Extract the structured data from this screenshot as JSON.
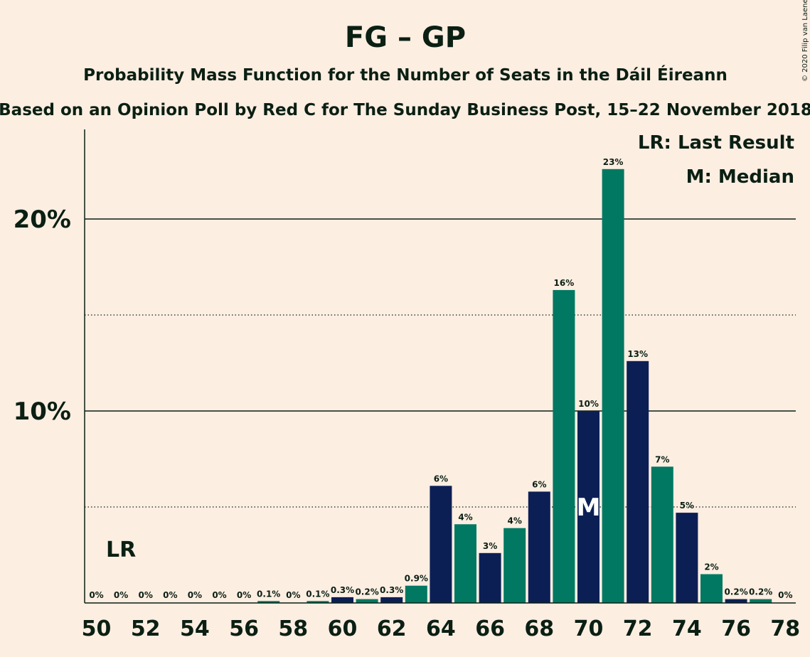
{
  "chart_data": {
    "type": "bar",
    "title": "FG – GP",
    "subtitle": "Probability Mass Function for the Number of Seats in the Dáil Éireann",
    "subtitle2": "Based on an Opinion Poll by Red C for The Sunday Business Post, 15–22 November 2018",
    "copyright": "© 2020 Filip van Laenen",
    "legend": [
      "LR: Last Result",
      "M: Median"
    ],
    "legend_position": "top-right",
    "last_result_label": "LR",
    "last_result_seat": 51,
    "median_label": "M",
    "median_seat": 70,
    "ylim": [
      0,
      24
    ],
    "y_major_ticks": [
      10,
      20
    ],
    "y_major_tick_labels": [
      "10%",
      "20%"
    ],
    "y_minor_ticks": [
      5,
      15
    ],
    "x_tick_labels": [
      "50",
      "52",
      "54",
      "56",
      "58",
      "60",
      "62",
      "64",
      "66",
      "68",
      "70",
      "72",
      "74",
      "76",
      "78"
    ],
    "x": [
      50,
      51,
      52,
      53,
      54,
      55,
      56,
      57,
      58,
      59,
      60,
      61,
      62,
      63,
      64,
      65,
      66,
      67,
      68,
      69,
      70,
      71,
      72,
      73,
      74,
      75,
      76,
      77,
      78
    ],
    "values": [
      0,
      0,
      0,
      0,
      0,
      0,
      0,
      0.1,
      0,
      0.1,
      0.3,
      0.2,
      0.3,
      0.9,
      6.1,
      4.1,
      2.6,
      3.9,
      5.8,
      16.3,
      10.0,
      22.6,
      12.6,
      7.1,
      4.7,
      1.5,
      0.2,
      0.2,
      0
    ],
    "labels": [
      "0%",
      "0%",
      "0%",
      "0%",
      "0%",
      "0%",
      "0%",
      "0.1%",
      "0%",
      "0.1%",
      "0.3%",
      "0.2%",
      "0.3%",
      "0.9%",
      "6%",
      "4%",
      "3%",
      "4%",
      "6%",
      "16%",
      "10%",
      "23%",
      "13%",
      "7%",
      "5%",
      "2%",
      "0.2%",
      "0.2%",
      "0%"
    ],
    "colors": {
      "even": "#0C1F55",
      "odd": "#007862",
      "background": "#FDEEE2",
      "text": "#0B1F13"
    },
    "grid": true
  }
}
